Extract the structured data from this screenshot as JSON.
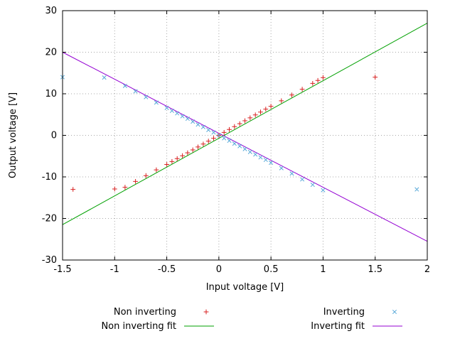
{
  "chart_data": {
    "type": "scatter",
    "title": "",
    "xlabel": "Input voltage [V]",
    "ylabel": "Output voltage [V]",
    "xlim": [
      -1.5,
      2
    ],
    "ylim": [
      -30,
      30
    ],
    "x_ticks": [
      -1.5,
      -1,
      -0.5,
      0,
      0.5,
      1,
      1.5,
      2
    ],
    "x_tick_labels": [
      "-1.5",
      "-1",
      "-0.5",
      "0",
      "0.5",
      "1",
      "1.5",
      "2"
    ],
    "y_ticks": [
      -30,
      -20,
      -10,
      0,
      10,
      20,
      30
    ],
    "y_tick_labels": [
      "-30",
      "-20",
      "-10",
      "0",
      "10",
      "20",
      "30"
    ],
    "grid": true,
    "grid_style": "dotted",
    "grid_color": "#a8a8a8",
    "border_color": "#000000",
    "legend_position": "below",
    "series": [
      {
        "name": "Non inverting",
        "kind": "points",
        "marker": "plus",
        "color": "#d82020",
        "points": [
          [
            -1.4,
            -13.0
          ],
          [
            -1.0,
            -12.9
          ],
          [
            -0.9,
            -12.5
          ],
          [
            -0.8,
            -11.1
          ],
          [
            -0.7,
            -9.7
          ],
          [
            -0.6,
            -8.3
          ],
          [
            -0.5,
            -7.0
          ],
          [
            -0.45,
            -6.3
          ],
          [
            -0.4,
            -5.6
          ],
          [
            -0.35,
            -4.9
          ],
          [
            -0.3,
            -4.2
          ],
          [
            -0.25,
            -3.5
          ],
          [
            -0.2,
            -2.8
          ],
          [
            -0.15,
            -2.1
          ],
          [
            -0.1,
            -1.4
          ],
          [
            -0.05,
            -0.7
          ],
          [
            0.0,
            0.0
          ],
          [
            0.05,
            0.7
          ],
          [
            0.1,
            1.4
          ],
          [
            0.15,
            2.1
          ],
          [
            0.2,
            2.8
          ],
          [
            0.25,
            3.5
          ],
          [
            0.3,
            4.2
          ],
          [
            0.35,
            4.9
          ],
          [
            0.4,
            5.6
          ],
          [
            0.45,
            6.3
          ],
          [
            0.5,
            7.0
          ],
          [
            0.6,
            8.3
          ],
          [
            0.7,
            9.7
          ],
          [
            0.8,
            11.1
          ],
          [
            0.9,
            12.5
          ],
          [
            0.95,
            13.2
          ],
          [
            1.0,
            13.9
          ],
          [
            1.5,
            14.0
          ]
        ]
      },
      {
        "name": "Inverting",
        "kind": "points",
        "marker": "cross",
        "color": "#56a8d8",
        "points": [
          [
            -1.5,
            14.0
          ],
          [
            -1.1,
            13.9
          ],
          [
            -0.9,
            11.9
          ],
          [
            -0.8,
            10.6
          ],
          [
            -0.7,
            9.2
          ],
          [
            -0.6,
            7.9
          ],
          [
            -0.5,
            6.6
          ],
          [
            -0.45,
            5.9
          ],
          [
            -0.4,
            5.3
          ],
          [
            -0.35,
            4.6
          ],
          [
            -0.3,
            4.0
          ],
          [
            -0.25,
            3.3
          ],
          [
            -0.2,
            2.6
          ],
          [
            -0.15,
            2.0
          ],
          [
            -0.1,
            1.3
          ],
          [
            -0.05,
            0.7
          ],
          [
            0.0,
            0.0
          ],
          [
            0.05,
            -0.7
          ],
          [
            0.1,
            -1.3
          ],
          [
            0.15,
            -2.0
          ],
          [
            0.2,
            -2.6
          ],
          [
            0.25,
            -3.3
          ],
          [
            0.3,
            -4.0
          ],
          [
            0.35,
            -4.6
          ],
          [
            0.4,
            -5.3
          ],
          [
            0.45,
            -5.9
          ],
          [
            0.5,
            -6.6
          ],
          [
            0.6,
            -7.9
          ],
          [
            0.7,
            -9.2
          ],
          [
            0.8,
            -10.6
          ],
          [
            0.9,
            -11.9
          ],
          [
            1.0,
            -13.2
          ],
          [
            1.9,
            -13.0
          ]
        ]
      },
      {
        "name": "Non inverting fit",
        "kind": "line",
        "color": "#00a000",
        "fit": {
          "slope": 13.857,
          "intercept": -0.71
        }
      },
      {
        "name": "Inverting fit",
        "kind": "line",
        "color": "#9400d3",
        "fit": {
          "slope": -13.0,
          "intercept": 0.5
        }
      }
    ]
  }
}
